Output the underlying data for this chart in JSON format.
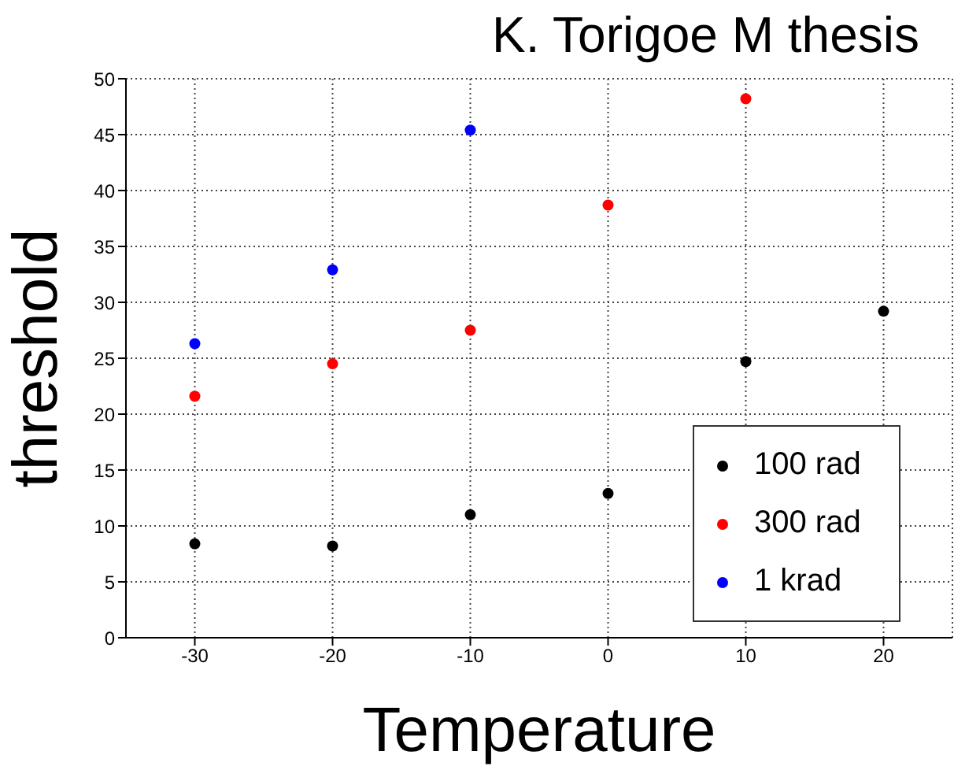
{
  "chart_data": {
    "type": "scatter",
    "title": "K. Torigoe M thesis",
    "xlabel": "Temperature",
    "ylabel": "threshold",
    "xlim": [
      -35,
      25
    ],
    "xticks": [
      -30,
      -20,
      -10,
      0,
      10,
      20
    ],
    "ylim": [
      0,
      50
    ],
    "yticks": [
      0,
      5,
      10,
      15,
      20,
      25,
      30,
      35,
      40,
      45,
      50
    ],
    "grid": true,
    "legend": "bottom right",
    "marker": "circle",
    "series": [
      {
        "name": "100 rad",
        "color": "#000000",
        "x": [
          -30,
          -20,
          -10,
          0,
          10,
          20
        ],
        "values": [
          8.4,
          8.2,
          11.0,
          12.9,
          24.7,
          29.2
        ]
      },
      {
        "name": "300 rad",
        "color": "#ff0000",
        "x": [
          -30,
          -20,
          -10,
          0,
          10
        ],
        "values": [
          21.6,
          24.5,
          27.5,
          38.7,
          48.2
        ]
      },
      {
        "name": "1 krad",
        "color": "#0000ff",
        "x": [
          -30,
          -20,
          -10
        ],
        "values": [
          26.3,
          32.9,
          45.4
        ]
      }
    ]
  }
}
